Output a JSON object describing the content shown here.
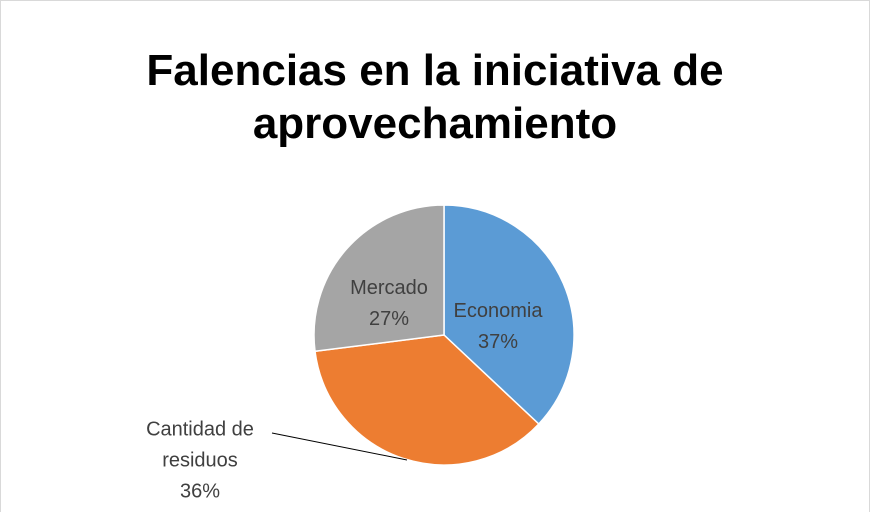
{
  "chart_data": {
    "type": "pie",
    "title": "Falencias en la iniciativa de aprovechamiento",
    "categories": [
      "Economia",
      "Cantidad de residuos",
      "Mercado"
    ],
    "values": [
      37,
      36,
      27
    ],
    "value_labels": [
      "37%",
      "36%",
      "27%"
    ],
    "colors": [
      "#5b9bd5",
      "#ed7d31",
      "#a5a5a5"
    ]
  }
}
